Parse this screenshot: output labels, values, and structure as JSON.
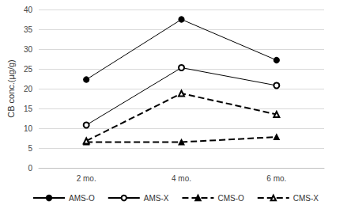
{
  "chart_data": {
    "type": "line",
    "y_label": "CB conc.(µg/g)",
    "categories": [
      "2 mo.",
      "4 mo.",
      "6 mo."
    ],
    "series": [
      {
        "name": "AMS-O",
        "color": "#000000",
        "marker": "circle",
        "line_style": "solid",
        "values": [
          22.3,
          37.5,
          27.2
        ]
      },
      {
        "name": "AMS-X",
        "color": "#000000",
        "marker": "hollow_circle",
        "line_style": "solid",
        "values": [
          10.8,
          25.3,
          20.8
        ]
      },
      {
        "name": "CMS-O",
        "color": "#000000",
        "marker": "triangle",
        "line_style": "dashed",
        "values": [
          6.5,
          6.5,
          7.8
        ]
      },
      {
        "name": "CMS-X",
        "color": "#000000",
        "marker": "hollow_triangle",
        "line_style": "dashed",
        "values": [
          6.8,
          18.8,
          13.5
        ]
      }
    ],
    "ylim": [
      0,
      40
    ],
    "yticks": [
      0,
      5,
      10,
      15,
      20,
      25,
      30,
      35,
      40
    ],
    "grid": true,
    "legend": "bottom"
  }
}
